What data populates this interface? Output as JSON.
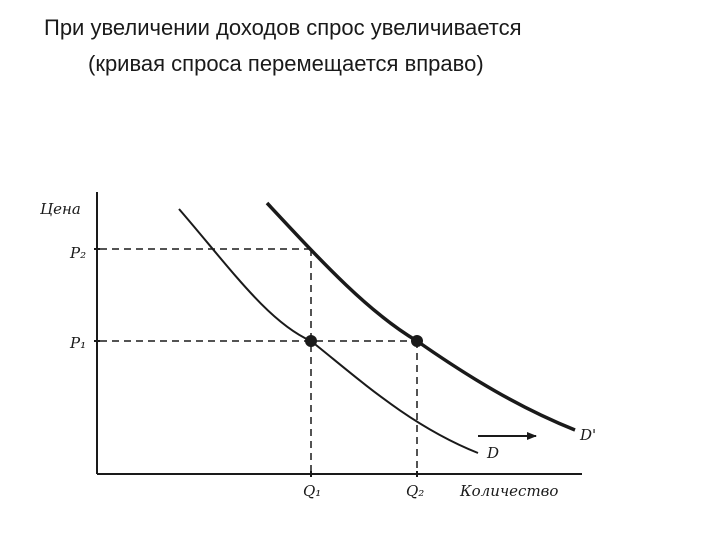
{
  "title": {
    "line1": "При увеличении доходов спрос увеличивается",
    "line2": "(кривая спроса перемещается вправо)"
  },
  "diagram": {
    "y_axis_label": "Цена",
    "x_axis_label": "Количество",
    "price_labels": {
      "p2": "P₂",
      "p1": "P₁"
    },
    "quantity_labels": {
      "q1": "Q₁",
      "q2": "Q₂"
    },
    "curve_labels": {
      "d": "D",
      "d_prime": "D'"
    },
    "shift_arrow": "right"
  }
}
